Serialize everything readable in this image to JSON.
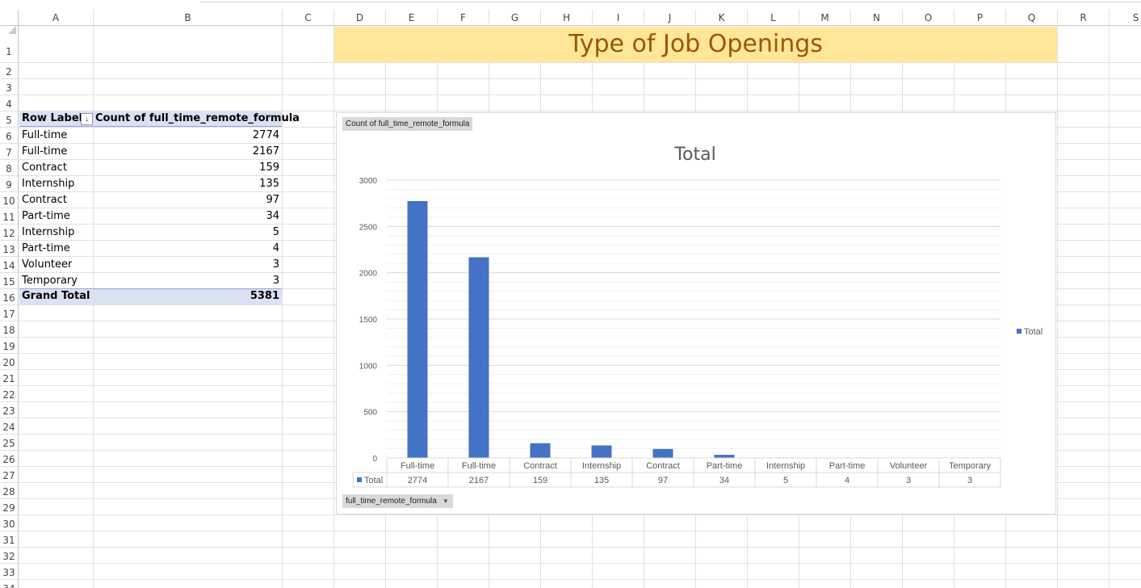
{
  "columns": [
    "A",
    "B",
    "C",
    "D",
    "E",
    "F",
    "G",
    "H",
    "I",
    "J",
    "K",
    "L",
    "M",
    "N",
    "O",
    "P",
    "Q",
    "R",
    "S"
  ],
  "rows": [
    "1",
    "2",
    "3",
    "4",
    "5",
    "6",
    "7",
    "8",
    "9",
    "10",
    "11",
    "12",
    "13",
    "14",
    "15",
    "16",
    "17",
    "18",
    "19",
    "20",
    "21",
    "22",
    "23",
    "24",
    "25",
    "26",
    "27",
    "28",
    "29",
    "30",
    "31",
    "32",
    "33",
    "34"
  ],
  "banner": {
    "title": "Type of Job Openings"
  },
  "pivot": {
    "header_label": "Row Labels",
    "header_value": "Count of full_time_remote_formula",
    "filter_icon": "sort-filter-icon",
    "rows": [
      {
        "label": "Full-time",
        "value": "2774"
      },
      {
        "label": "Full-time",
        "value": "2167"
      },
      {
        "label": "Contract",
        "value": "159"
      },
      {
        "label": "Internship",
        "value": "135"
      },
      {
        "label": "Contract",
        "value": "97"
      },
      {
        "label": "Part-time",
        "value": "34"
      },
      {
        "label": "Internship",
        "value": "5"
      },
      {
        "label": "Part-time",
        "value": "4"
      },
      {
        "label": "Volunteer",
        "value": "3"
      },
      {
        "label": "Temporary",
        "value": "3"
      }
    ],
    "total_label": "Grand Total",
    "total_value": "5381"
  },
  "chart_field_buttons": {
    "value_field": "Count of full_time_remote_formula",
    "axis_field": "full_time_remote_formula",
    "axis_dropdown_icon": "dropdown-arrow-icon"
  },
  "chart_data": {
    "type": "bar",
    "title": "Total",
    "categories": [
      "Full-time",
      "Full-time",
      "Contract",
      "Internship",
      "Contract",
      "Part-time",
      "Internship",
      "Part-time",
      "Volunteer",
      "Temporary"
    ],
    "series": [
      {
        "name": "Total",
        "values": [
          2774,
          2167,
          159,
          135,
          97,
          34,
          5,
          4,
          3,
          3
        ]
      }
    ],
    "ylim": [
      0,
      3000
    ],
    "yticks": [
      0,
      500,
      1000,
      1500,
      2000,
      2500,
      3000
    ],
    "legend_position": "right",
    "data_table": true,
    "grid": true,
    "colors": {
      "bar": "#4472c4"
    }
  },
  "colors": {
    "banner_fill": "#ffe699",
    "banner_text": "#9c5700",
    "pivot_header": "#d9e1f2"
  }
}
